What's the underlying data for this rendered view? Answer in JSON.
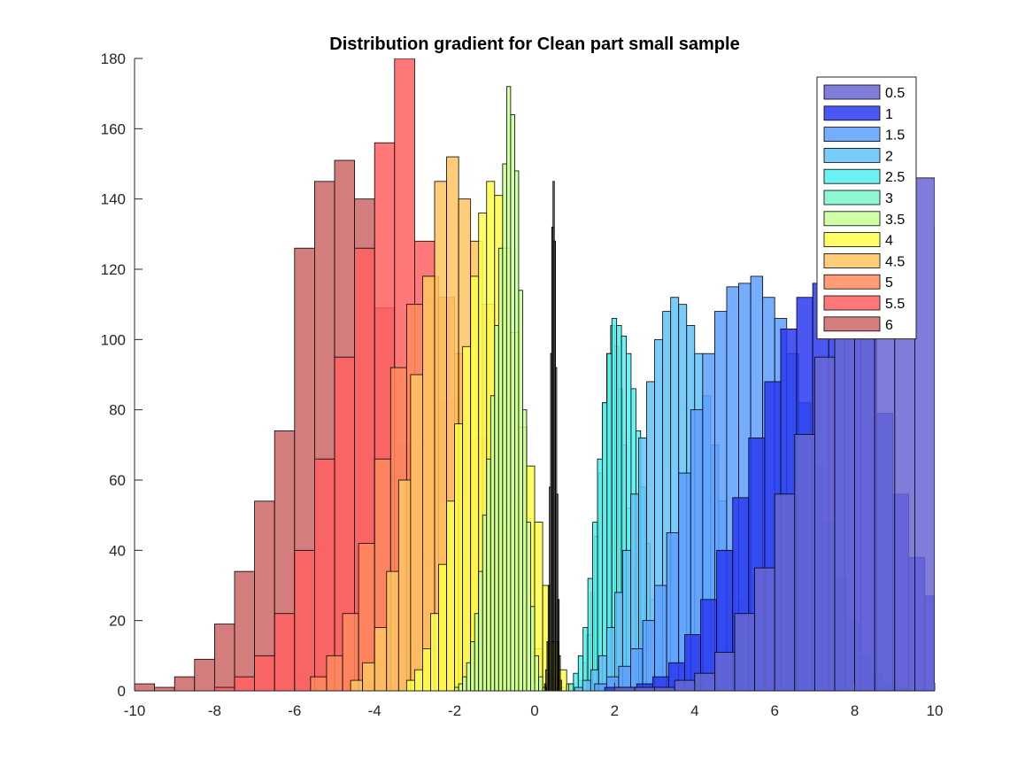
{
  "chart_data": {
    "type": "histogram",
    "title": "Distribution gradient for Clean part small sample",
    "xlabel": "",
    "ylabel": "",
    "xlim": [
      -10,
      10
    ],
    "ylim": [
      0,
      180
    ],
    "xticks": [
      -10,
      -8,
      -6,
      -4,
      -2,
      0,
      2,
      4,
      6,
      8,
      10
    ],
    "yticks": [
      0,
      20,
      40,
      60,
      80,
      100,
      120,
      140,
      160,
      180
    ],
    "grid": false,
    "legend_position": "top-right",
    "series": [
      {
        "name": "0.5",
        "color": "#6767d4",
        "x0": 2.0,
        "width": 0.5,
        "values": [
          1,
          1,
          1,
          3,
          5,
          11,
          22,
          35,
          56,
          73,
          95,
          110,
          115,
          153,
          164,
          146,
          132,
          124,
          71,
          42,
          33,
          14,
          4,
          4,
          4,
          0,
          2
        ]
      },
      {
        "name": "1",
        "color": "#2a3af0",
        "x0": 1.75,
        "width": 0.4,
        "values": [
          1,
          1,
          2,
          4,
          8,
          16,
          26,
          40,
          55,
          72,
          88,
          103,
          112,
          116,
          112,
          108,
          100,
          79,
          56,
          38,
          27,
          18,
          10,
          6,
          3,
          2
        ]
      },
      {
        "name": "1.5",
        "color": "#5da0ff",
        "x0": 1.5,
        "width": 0.3,
        "values": [
          2,
          4,
          7,
          12,
          20,
          30,
          45,
          62,
          80,
          96,
          108,
          115,
          116,
          118,
          112,
          106,
          96,
          82,
          64,
          48,
          32,
          20,
          10,
          5,
          2,
          1
        ]
      },
      {
        "name": "2",
        "color": "#61c2f8",
        "x0": 1.0,
        "width": 0.2,
        "values": [
          1,
          3,
          6,
          10,
          18,
          28,
          40,
          56,
          72,
          88,
          100,
          108,
          112,
          110,
          104,
          96,
          84,
          70,
          54,
          40,
          26,
          14,
          8,
          3,
          1
        ]
      },
      {
        "name": "2.5",
        "color": "#52f0f0",
        "x0": 0.85,
        "width": 0.12,
        "values": [
          2,
          5,
          10,
          18,
          32,
          48,
          66,
          82,
          96,
          106,
          104,
          101,
          96,
          86,
          74,
          58,
          42,
          26,
          14,
          6,
          2
        ]
      },
      {
        "name": "3",
        "color": "#7af5c8",
        "x0": 1.1,
        "width": 0.1,
        "values": [
          3,
          8,
          16,
          28,
          44,
          62,
          82,
          96,
          104,
          98,
          86,
          70,
          52,
          36,
          22,
          12,
          5,
          2
        ]
      },
      {
        "name": "3.5",
        "color": "#c8ff96",
        "x0": -2.0,
        "width": 0.1,
        "values": [
          1,
          2,
          4,
          8,
          14,
          22,
          34,
          50,
          66,
          84,
          104,
          126,
          150,
          172,
          164,
          148,
          114,
          80,
          48,
          24,
          10,
          4,
          1
        ]
      },
      {
        "name": "4",
        "color": "#ffff4a",
        "x0": -3.2,
        "width": 0.2,
        "values": [
          3,
          6,
          12,
          22,
          36,
          54,
          76,
          98,
          118,
          136,
          145,
          141,
          126,
          102,
          75,
          64,
          48,
          30,
          14,
          6,
          2
        ]
      },
      {
        "name": "4.5",
        "color": "#ffc461",
        "x0": -4.6,
        "width": 0.3,
        "values": [
          3,
          8,
          18,
          34,
          60,
          90,
          118,
          145,
          152,
          140,
          128,
          110,
          82,
          54,
          28,
          12,
          4,
          1
        ]
      },
      {
        "name": "5",
        "color": "#ff8a5e",
        "x0": -5.6,
        "width": 0.4,
        "values": [
          4,
          10,
          22,
          42,
          66,
          92,
          110,
          118,
          112,
          96,
          72,
          46,
          22,
          8,
          2
        ]
      },
      {
        "name": "5.5",
        "color": "#ff6060",
        "x0": -8.0,
        "width": 0.5,
        "values": [
          1,
          4,
          10,
          22,
          40,
          66,
          95,
          126,
          156,
          180,
          128,
          82,
          38,
          12,
          4,
          1
        ]
      },
      {
        "name": "6",
        "color": "#cb6666",
        "x0": -10.0,
        "width": 0.5,
        "values": [
          2,
          1,
          4,
          9,
          19,
          34,
          54,
          74,
          126,
          145,
          151,
          140,
          109,
          70,
          38,
          16,
          5,
          2
        ]
      }
    ],
    "overlay": {
      "color": "#000000",
      "x0": 0.25,
      "width": 0.03,
      "values": [
        2,
        6,
        14,
        30,
        58,
        96,
        132,
        145,
        128,
        92,
        56,
        26,
        10,
        3
      ]
    }
  }
}
